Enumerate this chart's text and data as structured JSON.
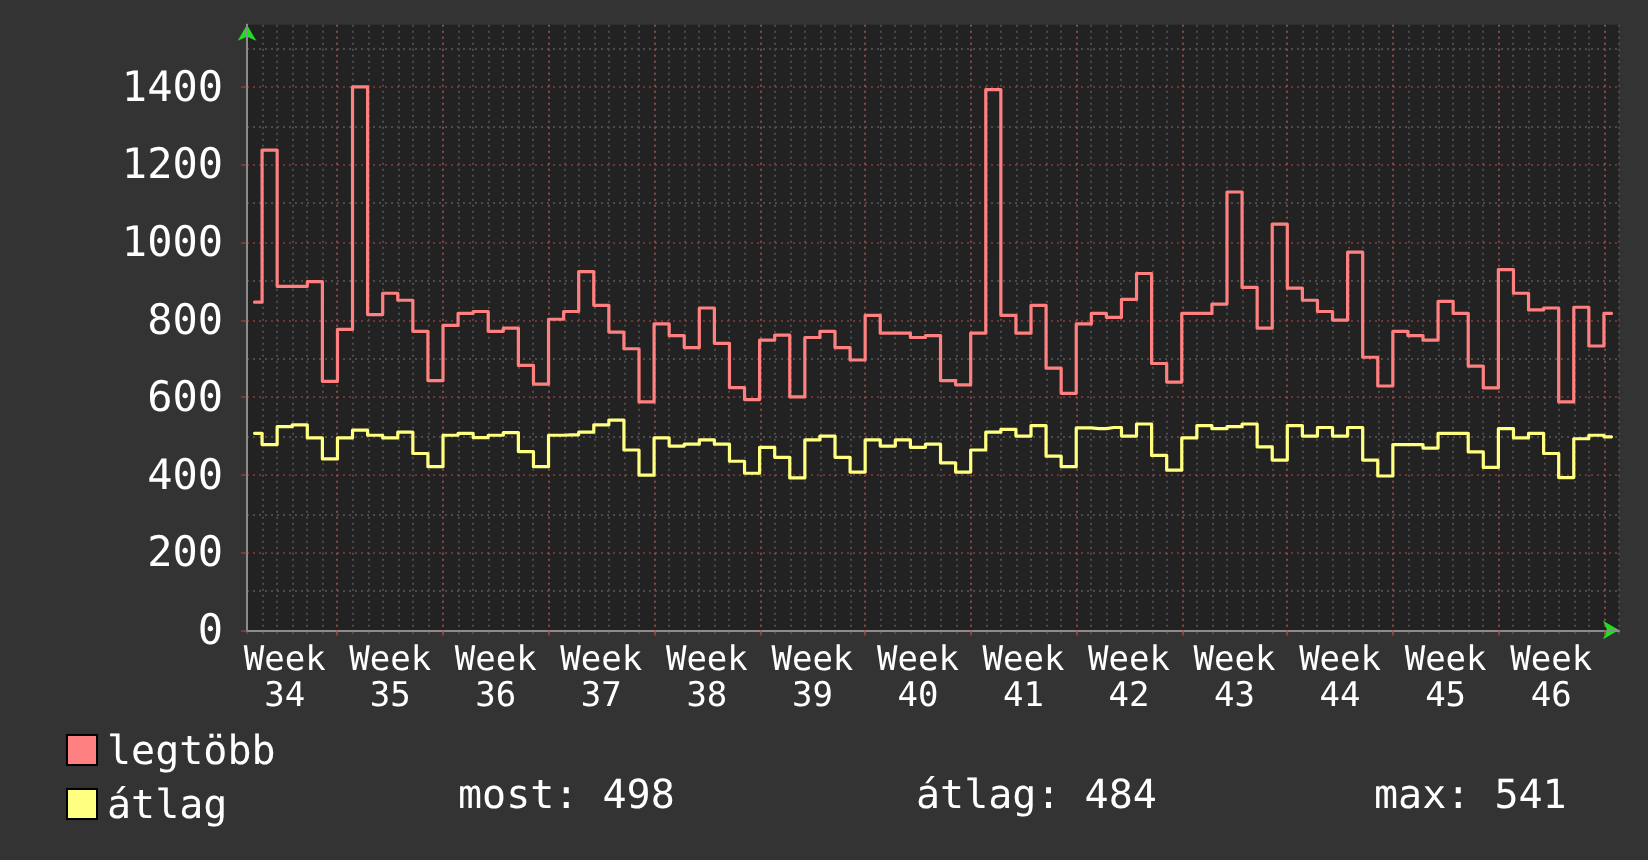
{
  "chart_data": {
    "type": "step",
    "categories": [
      null,
      null,
      "Week 34",
      null,
      null,
      null,
      null,
      null,
      null,
      "Week 35",
      null,
      null,
      null,
      null,
      null,
      null,
      "Week 36",
      null,
      null,
      null,
      null,
      null,
      null,
      "Week 37",
      null,
      null,
      null,
      null,
      null,
      null,
      "Week 38",
      null,
      null,
      null,
      null,
      null,
      null,
      "Week 39",
      null,
      null,
      null,
      null,
      null,
      null,
      "Week 40",
      null,
      null,
      null,
      null,
      null,
      null,
      "Week 41",
      null,
      null,
      null,
      null,
      null,
      null,
      "Week 42",
      null,
      null,
      null,
      null,
      null,
      null,
      "Week 43",
      null,
      null,
      null,
      null,
      null,
      null,
      "Week 44",
      null,
      null,
      null,
      null,
      null,
      null,
      "Week 45",
      null,
      null,
      null,
      null,
      null,
      null,
      "Week 46",
      null,
      null,
      null,
      null
    ],
    "ylim": [
      0,
      1560
    ],
    "yticks": [
      0,
      200,
      400,
      600,
      800,
      1000,
      1200,
      1400
    ],
    "grid": true,
    "legend": "bottom left",
    "series": [
      {
        "name": "legtöbb",
        "color": "#ff8080",
        "values": [
          845,
          1237,
          886,
          886,
          898,
          641,
          775,
          1400,
          813,
          868,
          850,
          770,
          643,
          785,
          816,
          821,
          770,
          778,
          682,
          634,
          801,
          821,
          924,
          837,
          768,
          725,
          588,
          789,
          759,
          728,
          830,
          739,
          625,
          594,
          747,
          760,
          601,
          754,
          770,
          728,
          696,
          811,
          765,
          765,
          754,
          759,
          643,
          632,
          765,
          1393,
          811,
          765,
          837,
          675,
          610,
          789,
          816,
          806,
          852,
          919,
          687,
          639,
          816,
          816,
          840,
          1129,
          883,
          778,
          1046,
          881,
          850,
          821,
          799,
          974,
          703,
          629,
          770,
          759,
          747,
          847,
          816,
          680,
          624,
          929,
          868,
          825,
          830,
          588,
          832,
          732,
          816
        ]
      },
      {
        "name": "átlag",
        "color": "#ffff80",
        "values": [
          507,
          478,
          524,
          529,
          495,
          441,
          495,
          515,
          502,
          495,
          510,
          455,
          421,
          502,
          507,
          496,
          502,
          509,
          460,
          421,
          502,
          503,
          510,
          529,
          541,
          464,
          399,
          495,
          474,
          479,
          490,
          479,
          435,
          404,
          471,
          445,
          392,
          490,
          500,
          445,
          407,
          490,
          474,
          490,
          471,
          479,
          431,
          407,
          464,
          510,
          517,
          500,
          527,
          448,
          421,
          521,
          519,
          522,
          500,
          531,
          450,
          412,
          495,
          527,
          519,
          524,
          531,
          472,
          438,
          527,
          500,
          522,
          500,
          522,
          438,
          397,
          478,
          478,
          469,
          507,
          507,
          459,
          419,
          519,
          495,
          507,
          455,
          393,
          493,
          502,
          498
        ]
      }
    ],
    "annotations": [
      "most: 498",
      "átlag: 484",
      "max: 541"
    ]
  }
}
